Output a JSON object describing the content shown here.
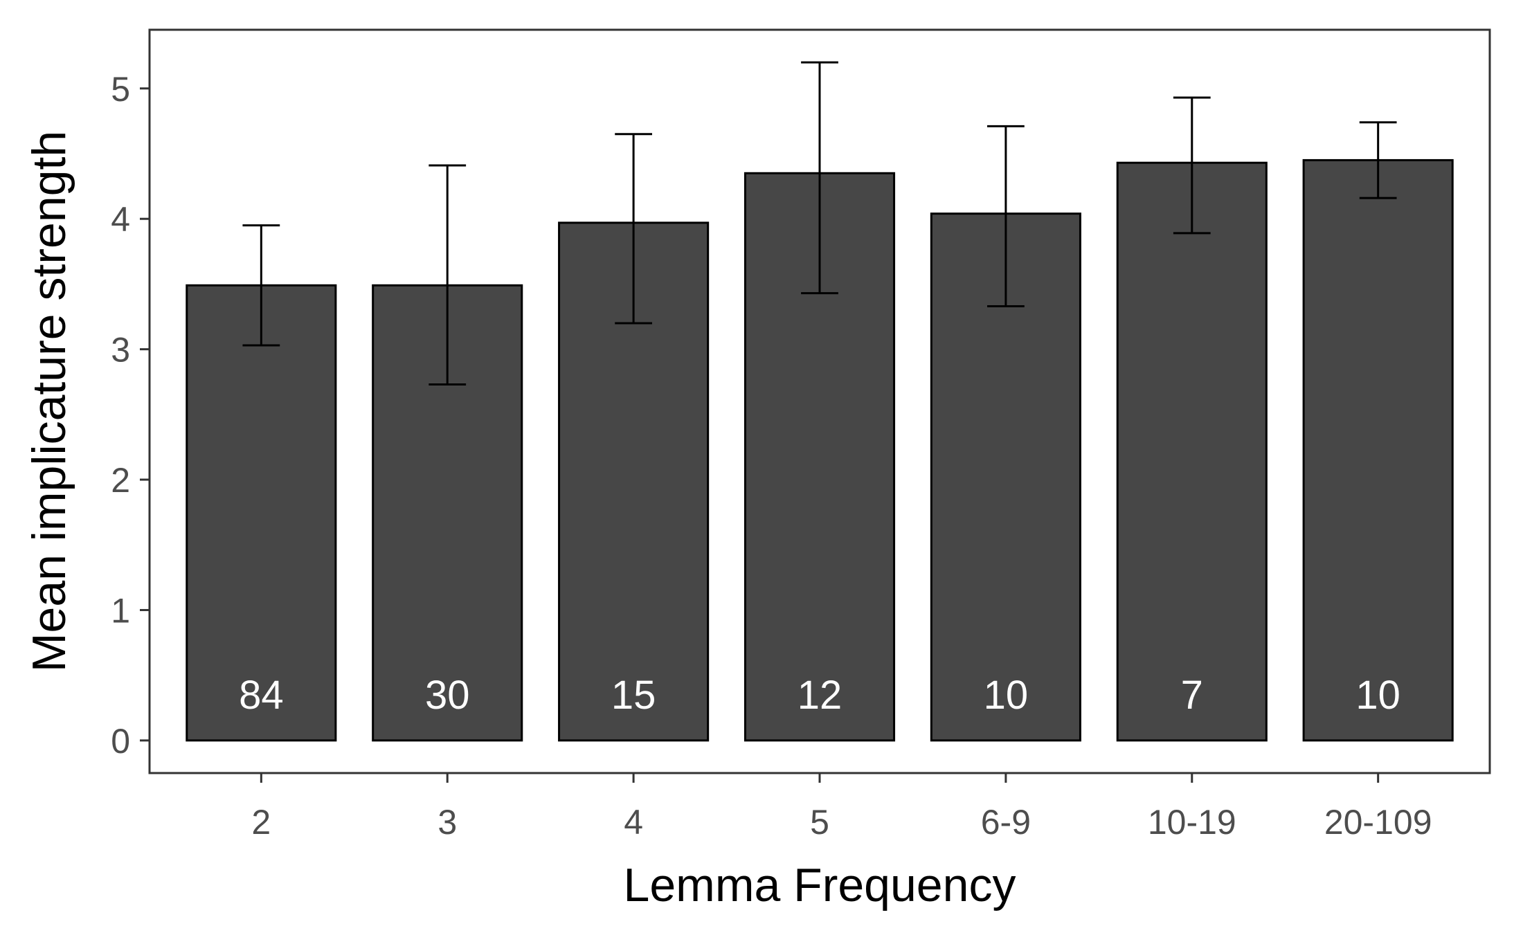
{
  "chart_data": {
    "type": "bar",
    "title": "",
    "xlabel": "Lemma Frequency",
    "ylabel": "Mean implicature strength",
    "categories": [
      "2",
      "3",
      "4",
      "5",
      "6-9",
      "10-19",
      "20-109"
    ],
    "values": [
      3.49,
      3.49,
      3.97,
      4.35,
      4.04,
      4.43,
      4.45
    ],
    "error_low": [
      3.03,
      2.73,
      3.2,
      3.43,
      3.33,
      3.89,
      4.16
    ],
    "error_high": [
      3.95,
      4.41,
      4.65,
      5.2,
      4.71,
      4.93,
      4.74
    ],
    "bar_labels": [
      "84",
      "30",
      "15",
      "12",
      "10",
      "7",
      "10"
    ],
    "ylim": [
      -0.25,
      5.45
    ],
    "yticks": [
      0,
      1,
      2,
      3,
      4,
      5
    ],
    "ytick_labels": [
      "0",
      "1",
      "2",
      "3",
      "4",
      "5"
    ],
    "grid": false,
    "legend": "none",
    "colors": {
      "bar_fill": "#474747",
      "bar_stroke": "#000000",
      "panel_border": "#333333",
      "tick_text": "#4d4d4d",
      "bar_label_text": "#ffffff"
    }
  }
}
